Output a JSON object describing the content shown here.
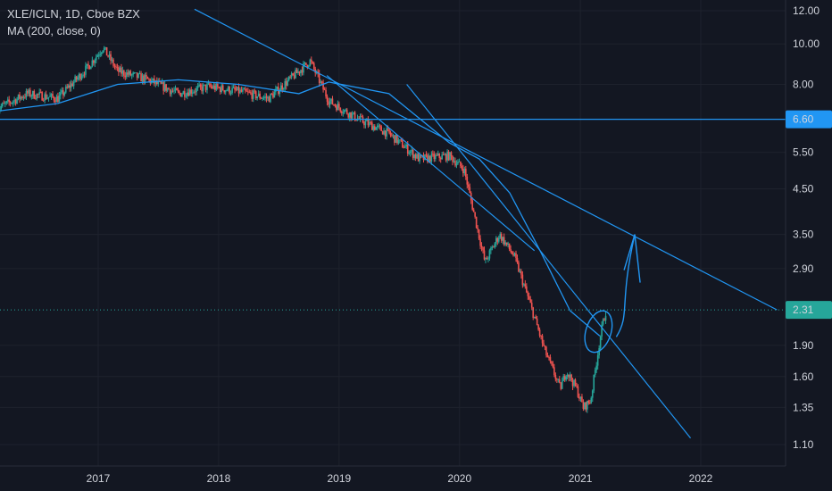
{
  "header": {
    "symbol_line": "XLE/ICLN, 1D, Cboe BZX",
    "indicator_line": "MA (200, close, 0)"
  },
  "colors": {
    "background": "#131722",
    "up": "#26a69a",
    "down": "#ef5350",
    "drawing": "#2196f3",
    "ma": "#2196f3",
    "last_price_badge": "#26a69a",
    "level_badge": "#2196f3"
  },
  "chart_data": {
    "type": "candlestick",
    "title": "XLE/ICLN, 1D, Cboe BZX",
    "y_scale": "log",
    "ylim": [
      1.0,
      12.5
    ],
    "y_ticks": [
      12.0,
      10.0,
      8.0,
      5.5,
      4.5,
      3.5,
      2.9,
      1.9,
      1.6,
      1.35,
      1.1
    ],
    "y_tick_labels": [
      "12.00",
      "10.00",
      "8.00",
      "5.50",
      "4.50",
      "3.50",
      "2.90",
      "1.90",
      "1.60",
      "1.35",
      "1.10"
    ],
    "x_ticks": [
      "2017",
      "2018",
      "2019",
      "2020",
      "2021",
      "2022"
    ],
    "x_range": [
      "2016-03-01",
      "2022-09-01"
    ],
    "price_path": [
      [
        "2016-03-01",
        7.0
      ],
      [
        "2016-06-01",
        7.6
      ],
      [
        "2016-09-01",
        7.4
      ],
      [
        "2016-12-01",
        8.8
      ],
      [
        "2017-01-15",
        9.8
      ],
      [
        "2017-03-01",
        8.6
      ],
      [
        "2017-06-01",
        8.2
      ],
      [
        "2017-09-01",
        7.6
      ],
      [
        "2017-12-01",
        7.9
      ],
      [
        "2018-03-01",
        7.7
      ],
      [
        "2018-06-01",
        7.4
      ],
      [
        "2018-09-01",
        8.6
      ],
      [
        "2018-10-05",
        9.1
      ],
      [
        "2018-12-01",
        7.3
      ],
      [
        "2019-03-01",
        6.6
      ],
      [
        "2019-06-01",
        6.1
      ],
      [
        "2019-09-01",
        5.3
      ],
      [
        "2019-12-01",
        5.4
      ],
      [
        "2020-01-15",
        5.0
      ],
      [
        "2020-03-18",
        3.0
      ],
      [
        "2020-05-01",
        3.5
      ],
      [
        "2020-06-15",
        3.1
      ],
      [
        "2020-08-01",
        2.4
      ],
      [
        "2020-09-15",
        1.85
      ],
      [
        "2020-11-01",
        1.5
      ],
      [
        "2020-11-20",
        1.65
      ],
      [
        "2020-12-20",
        1.5
      ],
      [
        "2021-01-10",
        1.35
      ],
      [
        "2021-02-01",
        1.4
      ],
      [
        "2021-03-05",
        2.05
      ],
      [
        "2021-03-20",
        2.31
      ]
    ],
    "series": [
      {
        "name": "MA (200, close, 0)",
        "points": [
          [
            "2016-03-01",
            6.9
          ],
          [
            "2016-09-01",
            7.2
          ],
          [
            "2017-03-01",
            8.0
          ],
          [
            "2017-09-01",
            8.2
          ],
          [
            "2018-03-01",
            8.0
          ],
          [
            "2018-09-01",
            7.6
          ],
          [
            "2018-12-01",
            8.1
          ],
          [
            "2019-06-01",
            7.6
          ],
          [
            "2019-12-01",
            5.8
          ],
          [
            "2020-03-01",
            5.3
          ],
          [
            "2020-06-01",
            4.4
          ],
          [
            "2020-09-01",
            3.2
          ],
          [
            "2020-12-01",
            2.3
          ],
          [
            "2021-03-01",
            2.0
          ]
        ]
      }
    ],
    "horizontal_lines": [
      {
        "value": 6.6,
        "label": "6.60"
      }
    ],
    "trend_lines": [
      {
        "from": [
          "2017-10-20",
          12.1
        ],
        "to": [
          "2022-08-20",
          2.31
        ]
      },
      {
        "from": [
          "2019-07-25",
          8.0
        ],
        "to": [
          "2021-12-01",
          1.14
        ]
      },
      {
        "from": [
          "2018-11-25",
          8.4
        ],
        "to": [
          "2020-08-15",
          3.2
        ]
      }
    ],
    "annotations": {
      "circle_center": [
        "2021-02-25",
        2.05
      ],
      "arrow_tip": [
        "2021-06-15",
        3.5
      ]
    },
    "last_price": {
      "value": 2.31,
      "label": "2.31"
    }
  }
}
